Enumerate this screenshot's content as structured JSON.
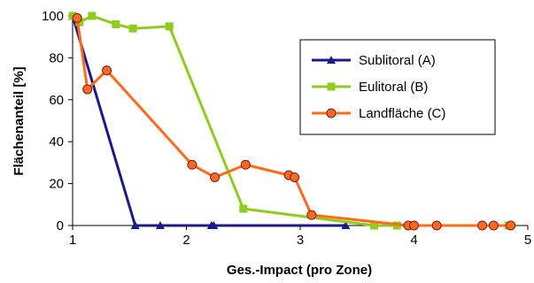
{
  "chart_data": {
    "type": "line",
    "xlabel": "Ges.-Impact (pro Zone)",
    "ylabel": "Flächenanteil [%]",
    "xlim": [
      1,
      5
    ],
    "ylim": [
      0,
      100
    ],
    "xticks": [
      "1",
      "2",
      "3",
      "4",
      "5"
    ],
    "yticks": [
      "0",
      "20",
      "40",
      "60",
      "80",
      "100"
    ],
    "grid": false,
    "legend_position": "top-right",
    "series": [
      {
        "name": "Sublitoral (A)",
        "color": "#1a1a8c",
        "marker": "triangle",
        "points": [
          [
            1.0,
            100
          ],
          [
            1.55,
            0
          ],
          [
            1.77,
            0
          ],
          [
            2.22,
            0
          ],
          [
            2.24,
            0
          ],
          [
            3.4,
            0
          ]
        ]
      },
      {
        "name": "Eulitoral (B)",
        "color": "#8fcc1f",
        "marker": "square",
        "points": [
          [
            1.0,
            100
          ],
          [
            1.06,
            97
          ],
          [
            1.17,
            100
          ],
          [
            1.38,
            96
          ],
          [
            1.53,
            94
          ],
          [
            1.85,
            95
          ],
          [
            2.5,
            8
          ],
          [
            3.65,
            0
          ],
          [
            3.85,
            0
          ],
          [
            4.83,
            0
          ]
        ]
      },
      {
        "name": "Landfläche (C)",
        "color": "#ff6a1a",
        "marker": "circle",
        "points": [
          [
            1.04,
            99
          ],
          [
            1.13,
            65
          ],
          [
            1.3,
            74
          ],
          [
            2.05,
            29
          ],
          [
            2.25,
            23
          ],
          [
            2.52,
            29
          ],
          [
            2.9,
            24
          ],
          [
            2.95,
            23
          ],
          [
            3.1,
            5
          ],
          [
            3.95,
            0
          ],
          [
            4.0,
            0
          ],
          [
            4.2,
            0
          ],
          [
            4.6,
            0
          ],
          [
            4.7,
            0
          ],
          [
            4.85,
            0
          ]
        ]
      }
    ]
  }
}
